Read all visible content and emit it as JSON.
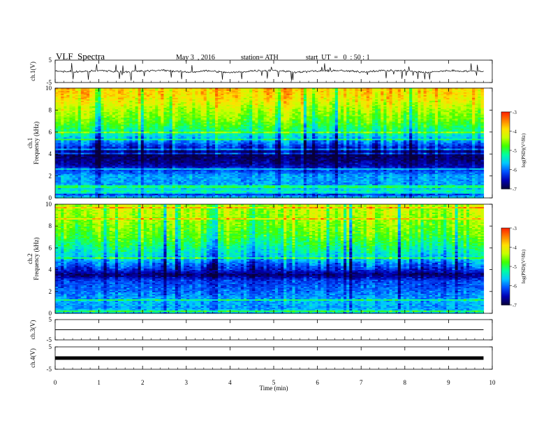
{
  "header": {
    "title": "VLF  Spectra",
    "date": "May 3  , 2016",
    "station": "station= ATH",
    "start": "start  UT  =   0  : 50 : 1"
  },
  "colors": {
    "spectrum": [
      "#08003a",
      "#0000b4",
      "#0050ff",
      "#00c8ff",
      "#00ffa0",
      "#40ff00",
      "#c8ff00",
      "#ffe000",
      "#ff8000",
      "#ff2000",
      "#ffffff"
    ],
    "trace": "#000000"
  },
  "chart_data": [
    {
      "type": "line",
      "panel": "ch.1 waveform",
      "ylabel": "ch.1(V)",
      "ylim": [
        -5,
        5
      ],
      "yticks": [
        "5",
        "-5"
      ],
      "x": [
        0,
        0.5,
        1,
        1.5,
        2,
        2.5,
        3,
        3.5,
        4,
        4.5,
        5,
        5.5,
        6,
        6.5,
        7,
        7.5,
        8,
        8.5,
        9,
        9.8
      ],
      "values": [
        0.2,
        -0.3,
        0.4,
        -0.2,
        0.1,
        0.5,
        -0.4,
        0.3,
        -0.6,
        0.2,
        0.4,
        -0.3,
        0.1,
        0.3,
        -0.2,
        0.4,
        0.2,
        -0.5,
        0.3,
        -0.1
      ],
      "note": "noisy waveform with spikes reaching about -4 V"
    },
    {
      "type": "heatmap",
      "panel": "ch.1 spectrogram",
      "ylabel": "ch.1\nFrequency  (kHz)",
      "yticks": [
        "10",
        "8",
        "6",
        "4",
        "2",
        "0"
      ],
      "ylim": [
        0,
        10
      ],
      "colorbar": {
        "label": "log(PSD)(V²/Hz)",
        "ticks": [
          "-3",
          "-4",
          "-5",
          "-6",
          "-7"
        ],
        "range": [
          -7,
          -3
        ]
      },
      "profile_khz": [
        0,
        0.3,
        0.5,
        1,
        2,
        3,
        3.5,
        4,
        5,
        5.5,
        6,
        7,
        8,
        9,
        10
      ],
      "profile_logpsd": [
        -5.4,
        -6.3,
        -5.2,
        -5.8,
        -5.8,
        -6.6,
        -6.8,
        -6.9,
        -6.0,
        -5.6,
        -5.2,
        -4.7,
        -4.4,
        -4.0,
        -3.8
      ]
    },
    {
      "type": "heatmap",
      "panel": "ch.2 spectrogram",
      "ylabel": "ch.2\nFrequency  (kHz)",
      "yticks": [
        "10",
        "8",
        "6",
        "4",
        "2",
        "0"
      ],
      "ylim": [
        0,
        10
      ],
      "colorbar": {
        "label": "log(PSD)(V²/Hz)",
        "ticks": [
          "-3",
          "-4",
          "-5",
          "-6",
          "-7"
        ],
        "range": [
          -7,
          -3
        ]
      },
      "profile_khz": [
        0,
        0.5,
        1,
        2,
        3,
        3.5,
        4,
        4.5,
        5,
        6,
        7,
        8,
        9,
        10
      ],
      "profile_logpsd": [
        -5.5,
        -5.8,
        -5.7,
        -6.0,
        -6.2,
        -6.8,
        -6.3,
        -6.0,
        -5.6,
        -5.2,
        -4.8,
        -4.6,
        -4.4,
        -4.3
      ]
    },
    {
      "type": "line",
      "panel": "ch.3 waveform",
      "ylabel": "ch.3(V)",
      "ylim": [
        -5,
        5
      ],
      "yticks": [
        "5",
        "-5"
      ],
      "x": [
        0,
        9.8
      ],
      "values": [
        0,
        0
      ],
      "note": "flat trace"
    },
    {
      "type": "line",
      "panel": "ch.4 waveform",
      "ylabel": "ch.4(V)",
      "ylim": [
        -5,
        5
      ],
      "yticks": [
        "5",
        "-5"
      ],
      "x": [
        0,
        9.8
      ],
      "values": [
        0,
        0
      ],
      "note": "thick flat trace"
    }
  ],
  "xaxis": {
    "label": "Time  (min)",
    "ticks": [
      "0",
      "1",
      "2",
      "3",
      "4",
      "5",
      "6",
      "7",
      "8",
      "9",
      "10"
    ],
    "range": [
      0,
      10
    ],
    "data_end": 9.8
  }
}
